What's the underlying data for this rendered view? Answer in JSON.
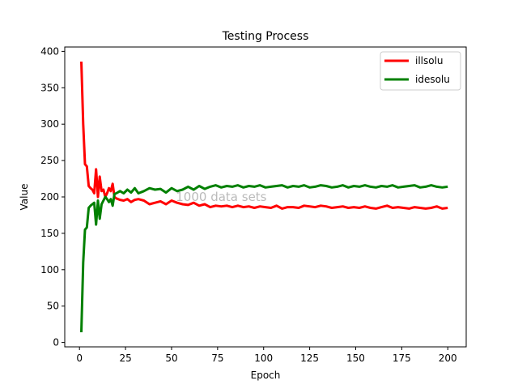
{
  "chart_data": {
    "type": "line",
    "title": "Testing Process",
    "xlabel": "Epoch",
    "ylabel": "Value",
    "xlim": [
      -8,
      210
    ],
    "ylim": [
      -6,
      406
    ],
    "xticks": [
      0,
      25,
      50,
      75,
      100,
      125,
      150,
      175,
      200
    ],
    "yticks": [
      0,
      50,
      100,
      150,
      200,
      250,
      300,
      350,
      400
    ],
    "grid": false,
    "legend_position": "top-right",
    "annotation": {
      "text": "1000 data sets",
      "x": 77,
      "y": 200
    },
    "series": [
      {
        "name": "illsolu",
        "color": "#ff0000",
        "x": [
          1,
          2,
          3,
          4,
          5,
          6,
          7,
          8,
          9,
          10,
          11,
          12,
          13,
          14,
          15,
          16,
          17,
          18,
          19,
          20,
          22,
          24,
          26,
          28,
          30,
          32,
          35,
          38,
          41,
          44,
          47,
          50,
          53,
          56,
          59,
          62,
          65,
          68,
          71,
          74,
          77,
          80,
          83,
          86,
          89,
          92,
          95,
          98,
          101,
          104,
          107,
          110,
          113,
          116,
          119,
          122,
          125,
          128,
          131,
          134,
          137,
          140,
          143,
          146,
          149,
          152,
          155,
          158,
          161,
          164,
          167,
          170,
          173,
          176,
          179,
          182,
          185,
          188,
          191,
          194,
          197,
          200
        ],
        "values": [
          386,
          300,
          245,
          242,
          215,
          212,
          210,
          205,
          238,
          200,
          228,
          208,
          210,
          200,
          205,
          212,
          208,
          218,
          200,
          198,
          196,
          195,
          197,
          193,
          196,
          197,
          195,
          190,
          192,
          194,
          190,
          195,
          192,
          190,
          189,
          192,
          188,
          190,
          186,
          188,
          187,
          188,
          186,
          188,
          186,
          187,
          185,
          187,
          186,
          185,
          188,
          184,
          186,
          186,
          185,
          188,
          187,
          186,
          188,
          187,
          185,
          186,
          187,
          185,
          186,
          185,
          187,
          185,
          184,
          186,
          188,
          185,
          186,
          185,
          184,
          186,
          185,
          184,
          185,
          187,
          184,
          185
        ]
      },
      {
        "name": "idesolu",
        "color": "#008000",
        "x": [
          1,
          2,
          3,
          4,
          5,
          6,
          7,
          8,
          9,
          10,
          11,
          12,
          13,
          14,
          15,
          16,
          17,
          18,
          19,
          20,
          22,
          24,
          26,
          28,
          30,
          32,
          35,
          38,
          41,
          44,
          47,
          50,
          53,
          56,
          59,
          62,
          65,
          68,
          71,
          74,
          77,
          80,
          83,
          86,
          89,
          92,
          95,
          98,
          101,
          104,
          107,
          110,
          113,
          116,
          119,
          122,
          125,
          128,
          131,
          134,
          137,
          140,
          143,
          146,
          149,
          152,
          155,
          158,
          161,
          164,
          167,
          170,
          173,
          176,
          179,
          182,
          185,
          188,
          191,
          194,
          197,
          200
        ],
        "values": [
          14,
          110,
          155,
          158,
          185,
          188,
          190,
          192,
          162,
          195,
          170,
          190,
          195,
          200,
          197,
          193,
          197,
          188,
          204,
          205,
          208,
          205,
          210,
          206,
          212,
          205,
          208,
          212,
          210,
          211,
          206,
          212,
          208,
          210,
          214,
          210,
          215,
          211,
          214,
          216,
          213,
          215,
          214,
          216,
          213,
          215,
          214,
          216,
          213,
          214,
          215,
          216,
          213,
          215,
          214,
          216,
          213,
          214,
          216,
          215,
          213,
          214,
          216,
          213,
          215,
          214,
          216,
          214,
          213,
          215,
          214,
          216,
          213,
          214,
          215,
          216,
          213,
          214,
          216,
          214,
          213,
          214
        ]
      }
    ]
  }
}
